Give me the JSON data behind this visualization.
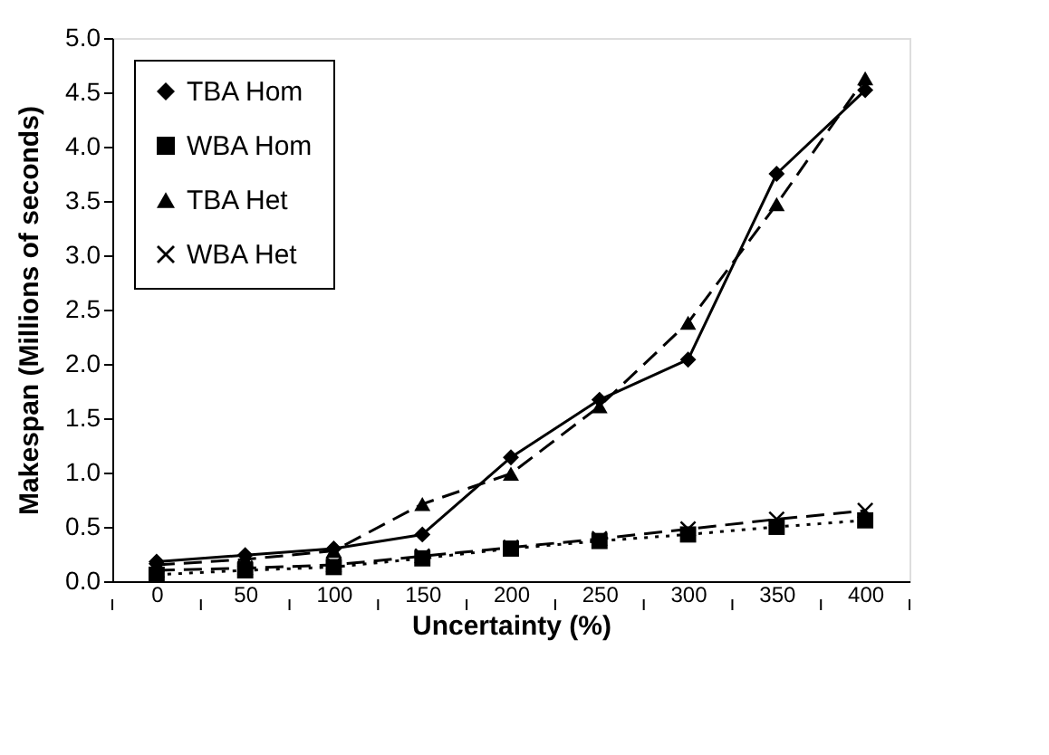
{
  "chart_data": {
    "type": "line",
    "xlabel": "Uncertainty (%)",
    "ylabel": "Makespan    (Millions of seconds)",
    "categories": [
      "0",
      "50",
      "100",
      "150",
      "200",
      "250",
      "300",
      "350",
      "400"
    ],
    "series": [
      {
        "name": "TBA Hom",
        "color": "#000000",
        "marker": "diamond",
        "line_style": "solid",
        "values": [
          0.18,
          0.24,
          0.3,
          0.43,
          1.14,
          1.67,
          2.04,
          3.75,
          4.52
        ]
      },
      {
        "name": "WBA Hom",
        "color": "#000000",
        "marker": "square",
        "line_style": "dotted",
        "values": [
          0.06,
          0.1,
          0.13,
          0.21,
          0.3,
          0.37,
          0.43,
          0.5,
          0.56
        ]
      },
      {
        "name": "TBA Het",
        "color": "#000000",
        "marker": "triangle",
        "line_style": "dashed",
        "values": [
          0.15,
          0.2,
          0.28,
          0.71,
          0.99,
          1.61,
          2.38,
          3.47,
          4.63
        ]
      },
      {
        "name": "WBA Het",
        "color": "#000000",
        "marker": "cross",
        "line_style": "dashed",
        "values": [
          0.1,
          0.12,
          0.15,
          0.23,
          0.31,
          0.39,
          0.48,
          0.57,
          0.65
        ]
      }
    ],
    "ylim": [
      0,
      5
    ],
    "yticks": [
      {
        "value": 0,
        "label": "0.0"
      },
      0.5,
      {
        "value": 1,
        "label": "1.0"
      },
      1.5,
      {
        "value": 2,
        "label": "2.0"
      },
      2.5,
      {
        "value": 3,
        "label": "3.0"
      },
      3.5,
      {
        "value": 4,
        "label": "4.0"
      },
      4.5,
      {
        "value": 5,
        "label": "5.0"
      }
    ],
    "grid": false,
    "legend": "top left"
  }
}
